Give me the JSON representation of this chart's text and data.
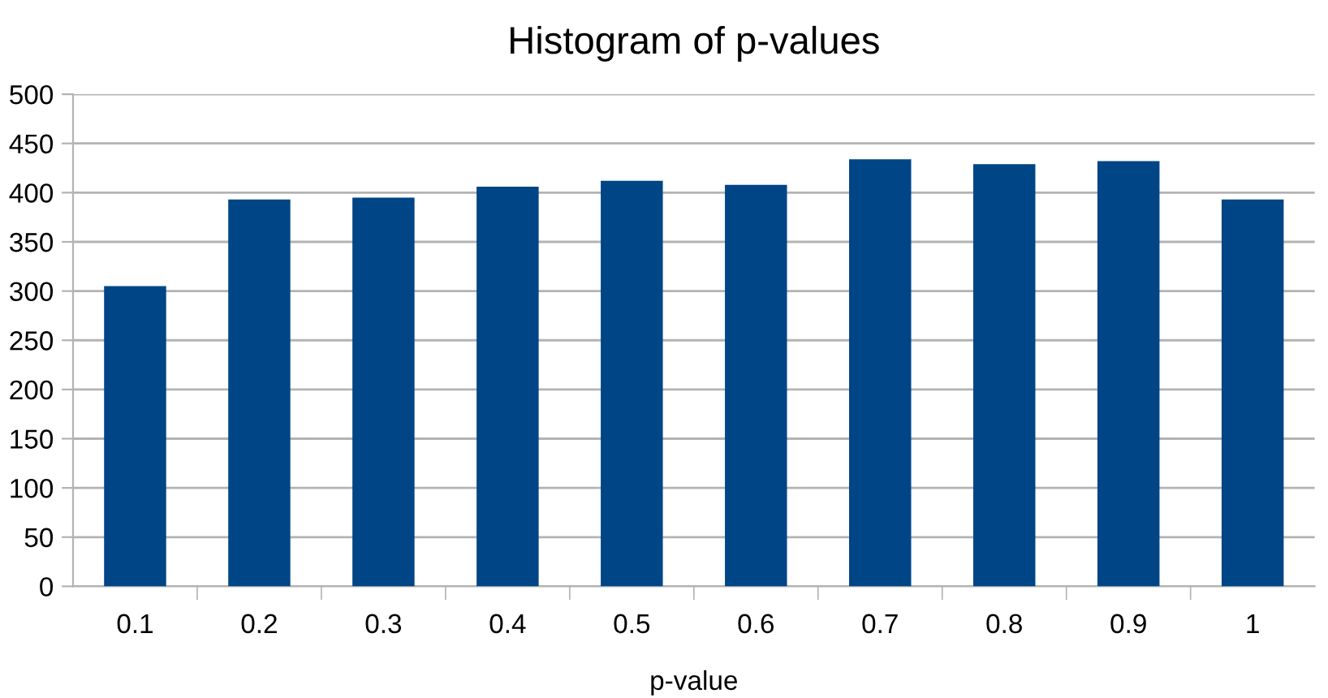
{
  "chart_data": {
    "type": "bar",
    "title": "Histogram of p-values",
    "xlabel": "p-value",
    "categories": [
      "0.1",
      "0.2",
      "0.3",
      "0.4",
      "0.5",
      "0.6",
      "0.7",
      "0.8",
      "0.9",
      "1"
    ],
    "values": [
      305,
      393,
      395,
      406,
      412,
      408,
      434,
      429,
      432,
      393
    ],
    "color": "#004586",
    "ylim": [
      0,
      500
    ],
    "yticks": [
      0,
      50,
      100,
      150,
      200,
      250,
      300,
      350,
      400,
      450,
      500
    ],
    "grid": "y",
    "legend": false
  }
}
